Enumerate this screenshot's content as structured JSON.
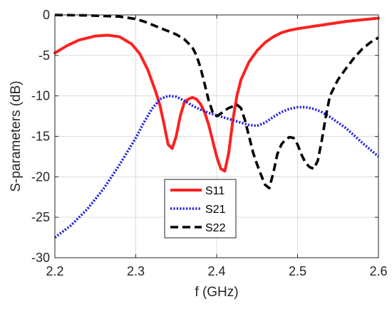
{
  "chart_data": {
    "type": "line",
    "title": "",
    "xlabel": "f (GHz)",
    "ylabel": "S-parameters (dB)",
    "xlim": [
      2.2,
      2.6
    ],
    "ylim": [
      -30,
      0
    ],
    "xticks": [
      2.2,
      2.3,
      2.4,
      2.5,
      2.6
    ],
    "xtick_labels": [
      "2.2",
      "2.3",
      "2.4",
      "2.5",
      "2.6"
    ],
    "yticks": [
      0,
      -5,
      -10,
      -15,
      -20,
      -25,
      -30
    ],
    "ytick_labels": [
      "0",
      "-5",
      "-10",
      "-15",
      "-20",
      "-25",
      "-30"
    ],
    "grid": true,
    "legend_position": "bottom-center",
    "series": [
      {
        "name": "S11",
        "color": "#ff2020",
        "style": "solid",
        "x": [
          2.2,
          2.215,
          2.23,
          2.25,
          2.265,
          2.28,
          2.295,
          2.305,
          2.315,
          2.325,
          2.33,
          2.335,
          2.34,
          2.345,
          2.35,
          2.355,
          2.36,
          2.365,
          2.37,
          2.375,
          2.38,
          2.385,
          2.39,
          2.395,
          2.4,
          2.405,
          2.41,
          2.415,
          2.42,
          2.425,
          2.43,
          2.44,
          2.45,
          2.46,
          2.47,
          2.48,
          2.49,
          2.5,
          2.52,
          2.54,
          2.56,
          2.58,
          2.6
        ],
        "y": [
          -4.7,
          -3.8,
          -3.1,
          -2.6,
          -2.5,
          -2.7,
          -3.6,
          -4.8,
          -6.8,
          -9.6,
          -11.2,
          -13.5,
          -16.0,
          -16.5,
          -15.0,
          -12.5,
          -10.8,
          -10.4,
          -10.2,
          -10.4,
          -11.0,
          -12.0,
          -13.5,
          -15.5,
          -17.5,
          -19.0,
          -19.3,
          -17.0,
          -13.0,
          -10.0,
          -8.0,
          -5.8,
          -4.4,
          -3.4,
          -2.7,
          -2.2,
          -1.9,
          -1.7,
          -1.4,
          -1.1,
          -0.8,
          -0.6,
          -0.4
        ]
      },
      {
        "name": "S21",
        "color": "#2020e0",
        "style": "dotted",
        "x": [
          2.2,
          2.22,
          2.24,
          2.26,
          2.28,
          2.3,
          2.31,
          2.32,
          2.33,
          2.34,
          2.35,
          2.36,
          2.37,
          2.38,
          2.39,
          2.4,
          2.41,
          2.42,
          2.43,
          2.44,
          2.45,
          2.46,
          2.47,
          2.48,
          2.49,
          2.5,
          2.51,
          2.52,
          2.53,
          2.54,
          2.56,
          2.58,
          2.6
        ],
        "y": [
          -27.5,
          -26.0,
          -24.0,
          -21.5,
          -18.5,
          -15.2,
          -13.3,
          -11.6,
          -10.4,
          -10.0,
          -10.1,
          -10.6,
          -11.2,
          -11.7,
          -12.1,
          -12.4,
          -12.7,
          -13.0,
          -13.3,
          -13.6,
          -13.7,
          -13.3,
          -12.6,
          -12.0,
          -11.6,
          -11.4,
          -11.4,
          -11.6,
          -12.0,
          -12.6,
          -14.0,
          -15.8,
          -17.5
        ]
      },
      {
        "name": "S22",
        "color": "#000000",
        "style": "dashed",
        "x": [
          2.2,
          2.24,
          2.28,
          2.3,
          2.31,
          2.32,
          2.33,
          2.34,
          2.35,
          2.36,
          2.37,
          2.375,
          2.38,
          2.385,
          2.39,
          2.395,
          2.4,
          2.405,
          2.41,
          2.415,
          2.42,
          2.425,
          2.43,
          2.435,
          2.44,
          2.445,
          2.45,
          2.455,
          2.46,
          2.465,
          2.47,
          2.475,
          2.48,
          2.485,
          2.49,
          2.495,
          2.5,
          2.505,
          2.51,
          2.515,
          2.52,
          2.525,
          2.53,
          2.535,
          2.54,
          2.55,
          2.56,
          2.57,
          2.58,
          2.59,
          2.6
        ],
        "y": [
          0.0,
          -0.05,
          -0.2,
          -0.5,
          -0.8,
          -1.2,
          -1.6,
          -2.0,
          -2.4,
          -3.0,
          -4.0,
          -5.0,
          -6.5,
          -8.5,
          -10.5,
          -12.0,
          -12.5,
          -12.2,
          -11.8,
          -11.5,
          -11.3,
          -11.1,
          -11.5,
          -13.0,
          -15.0,
          -17.0,
          -18.5,
          -19.8,
          -21.0,
          -21.4,
          -19.5,
          -17.2,
          -16.0,
          -15.4,
          -15.1,
          -15.2,
          -16.0,
          -17.3,
          -18.3,
          -18.8,
          -19.0,
          -18.0,
          -15.5,
          -12.5,
          -10.0,
          -8.0,
          -6.6,
          -5.3,
          -4.2,
          -3.4,
          -2.8
        ]
      }
    ]
  }
}
